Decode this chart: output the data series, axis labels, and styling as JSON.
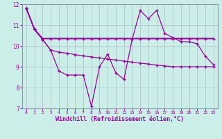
{
  "x": [
    0,
    1,
    2,
    3,
    4,
    5,
    6,
    7,
    8,
    9,
    10,
    11,
    12,
    13,
    14,
    15,
    16,
    17,
    18,
    19,
    20,
    21,
    22,
    23
  ],
  "line1": [
    11.8,
    10.8,
    10.3,
    9.8,
    8.8,
    8.6,
    8.6,
    8.6,
    7.1,
    9.0,
    9.6,
    8.7,
    8.4,
    10.3,
    11.7,
    11.3,
    11.7,
    10.6,
    10.4,
    10.2,
    10.2,
    10.1,
    9.5,
    9.1
  ],
  "line2": [
    11.8,
    10.8,
    10.35,
    10.35,
    10.35,
    10.35,
    10.35,
    10.35,
    10.35,
    10.35,
    10.35,
    10.35,
    10.35,
    10.35,
    10.35,
    10.35,
    10.35,
    10.35,
    10.35,
    10.35,
    10.35,
    10.35,
    10.35,
    10.35
  ],
  "line3": [
    11.8,
    10.8,
    10.3,
    9.8,
    9.7,
    9.65,
    9.58,
    9.52,
    9.47,
    9.42,
    9.37,
    9.32,
    9.27,
    9.22,
    9.17,
    9.13,
    9.08,
    9.04,
    9.0,
    9.0,
    9.0,
    9.0,
    9.0,
    9.0
  ],
  "bg_color": "#cceee8",
  "line_color": "#990099",
  "grid_color": "#aabbcc",
  "xlabel": "Windchill (Refroidissement éolien,°C)",
  "xlim": [
    -0.5,
    23.5
  ],
  "ylim": [
    7,
    12
  ],
  "yticks": [
    7,
    8,
    9,
    10,
    11,
    12
  ],
  "xticks": [
    0,
    1,
    2,
    3,
    4,
    5,
    6,
    7,
    8,
    9,
    10,
    11,
    12,
    13,
    14,
    15,
    16,
    17,
    18,
    19,
    20,
    21,
    22,
    23
  ],
  "marker": "+"
}
